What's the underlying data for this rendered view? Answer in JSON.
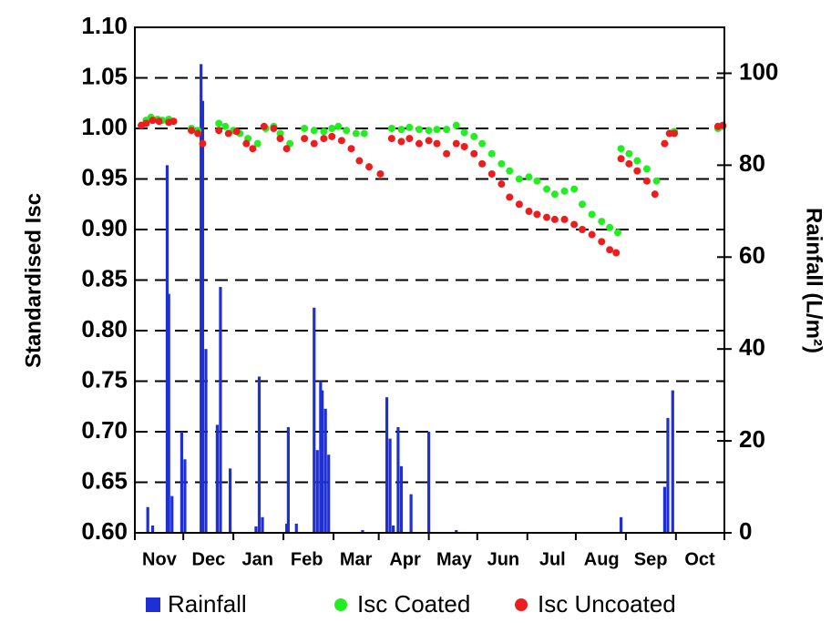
{
  "chart_data": {
    "type": "bar_scatter",
    "ylabel": "Standardised Isc",
    "y2label": "Rainfall (L/m²)",
    "categories": [
      "Nov",
      "Dec",
      "Jan",
      "Feb",
      "Mar",
      "Apr",
      "May",
      "Jun",
      "Jul",
      "Aug",
      "Sep",
      "Oct"
    ],
    "xlim": [
      0,
      365
    ],
    "xticks": [
      0,
      30,
      61,
      92,
      123,
      151,
      182,
      212,
      243,
      273,
      304,
      335,
      365
    ],
    "ylim": [
      0.6,
      1.1
    ],
    "yticks": [
      {
        "value": 0.6,
        "label": "0.60"
      },
      {
        "value": 0.65,
        "label": "0.65"
      },
      {
        "value": 0.7,
        "label": "0.70"
      },
      {
        "value": 0.75,
        "label": "0.75"
      },
      {
        "value": 0.8,
        "label": "0.80"
      },
      {
        "value": 0.85,
        "label": "0.85"
      },
      {
        "value": 0.9,
        "label": "0.90"
      },
      {
        "value": 0.95,
        "label": "0.95"
      },
      {
        "value": 1.0,
        "label": "1.00"
      },
      {
        "value": 1.05,
        "label": "1.05"
      },
      {
        "value": 1.1,
        "label": "1.10"
      }
    ],
    "y2lim": [
      0,
      110
    ],
    "y2ticks": [
      0,
      20,
      40,
      60,
      80,
      100
    ],
    "grid": true,
    "series": [
      {
        "name": "Rainfall",
        "kind": "bar",
        "axis": "y2",
        "color": "#1f2fd6",
        "x": [
          8,
          11,
          20,
          21,
          23,
          29,
          31,
          41,
          42,
          44,
          51,
          53,
          59,
          75,
          77,
          79,
          94,
          95,
          100,
          111,
          113,
          115,
          116,
          118,
          120,
          141,
          156,
          158,
          160,
          163,
          165,
          171,
          182,
          199,
          301,
          328,
          330,
          333
        ],
        "values": [
          5.6,
          1.6,
          80,
          52,
          8,
          22,
          16,
          102,
          94,
          40,
          23.5,
          53.5,
          14,
          1.4,
          34,
          3.4,
          2,
          23,
          2,
          49,
          18,
          33,
          31,
          27,
          17,
          0.6,
          29.5,
          20.5,
          1.6,
          23,
          14.5,
          8.4,
          22,
          0.6,
          3.4,
          10,
          25,
          31
        ]
      },
      {
        "name": "Isc Coated",
        "kind": "scatter",
        "color": "#22ee22",
        "x": [
          4,
          7,
          10,
          14,
          17,
          21,
          24,
          35,
          39,
          52,
          56,
          61,
          65,
          70,
          76,
          81,
          86,
          90,
          96,
          105,
          111,
          117,
          122,
          126,
          131,
          137,
          142,
          159,
          165,
          170,
          176,
          182,
          187,
          193,
          199,
          204,
          210,
          215,
          221,
          227,
          232,
          238,
          244,
          249,
          255,
          260,
          266,
          272,
          277,
          283,
          289,
          294,
          299,
          301,
          306,
          311,
          317,
          323,
          328,
          331,
          334,
          361,
          364
        ],
        "values": [
          1.003,
          1.008,
          1.011,
          1.009,
          1.008,
          1.009,
          1.007,
          1.0,
          0.998,
          1.005,
          1.002,
          0.998,
          0.995,
          0.99,
          0.985,
          1.0,
          1.002,
          0.995,
          0.985,
          1.0,
          0.998,
          0.997,
          1.0,
          1.002,
          0.998,
          0.995,
          0.995,
          1.0,
          0.999,
          1.001,
          0.999,
          0.998,
          0.999,
          0.999,
          1.003,
          0.996,
          0.992,
          0.985,
          0.975,
          0.965,
          0.958,
          0.95,
          0.952,
          0.948,
          0.94,
          0.935,
          0.938,
          0.94,
          0.925,
          0.915,
          0.908,
          0.902,
          0.897,
          0.98,
          0.975,
          0.968,
          0.96,
          0.948,
          0.985,
          0.995,
          0.997,
          1.0,
          1.002
        ]
      },
      {
        "name": "Isc Uncoated",
        "kind": "scatter",
        "color": "#ee1c1c",
        "x": [
          4,
          7,
          11,
          15,
          21,
          24,
          35,
          39,
          42,
          52,
          58,
          63,
          69,
          73,
          80,
          86,
          90,
          94,
          105,
          111,
          117,
          122,
          128,
          134,
          139,
          145,
          152,
          159,
          165,
          170,
          176,
          182,
          187,
          193,
          199,
          204,
          210,
          215,
          221,
          227,
          232,
          238,
          244,
          249,
          255,
          260,
          266,
          272,
          277,
          283,
          289,
          294,
          298,
          301,
          306,
          311,
          317,
          322,
          328,
          331,
          334,
          361,
          364
        ],
        "values": [
          1.003,
          1.005,
          1.008,
          1.007,
          1.006,
          1.007,
          0.998,
          0.995,
          0.985,
          0.998,
          0.995,
          0.997,
          0.985,
          0.98,
          1.002,
          1.0,
          0.99,
          0.98,
          0.99,
          0.985,
          0.99,
          0.992,
          0.988,
          0.98,
          0.968,
          0.962,
          0.955,
          0.99,
          0.987,
          0.99,
          0.985,
          0.988,
          0.985,
          0.975,
          0.985,
          0.982,
          0.975,
          0.965,
          0.955,
          0.945,
          0.932,
          0.925,
          0.918,
          0.915,
          0.912,
          0.91,
          0.91,
          0.905,
          0.9,
          0.895,
          0.888,
          0.88,
          0.877,
          0.97,
          0.965,
          0.958,
          0.948,
          0.935,
          0.985,
          0.995,
          0.995,
          1.002,
          1.003
        ]
      }
    ]
  }
}
